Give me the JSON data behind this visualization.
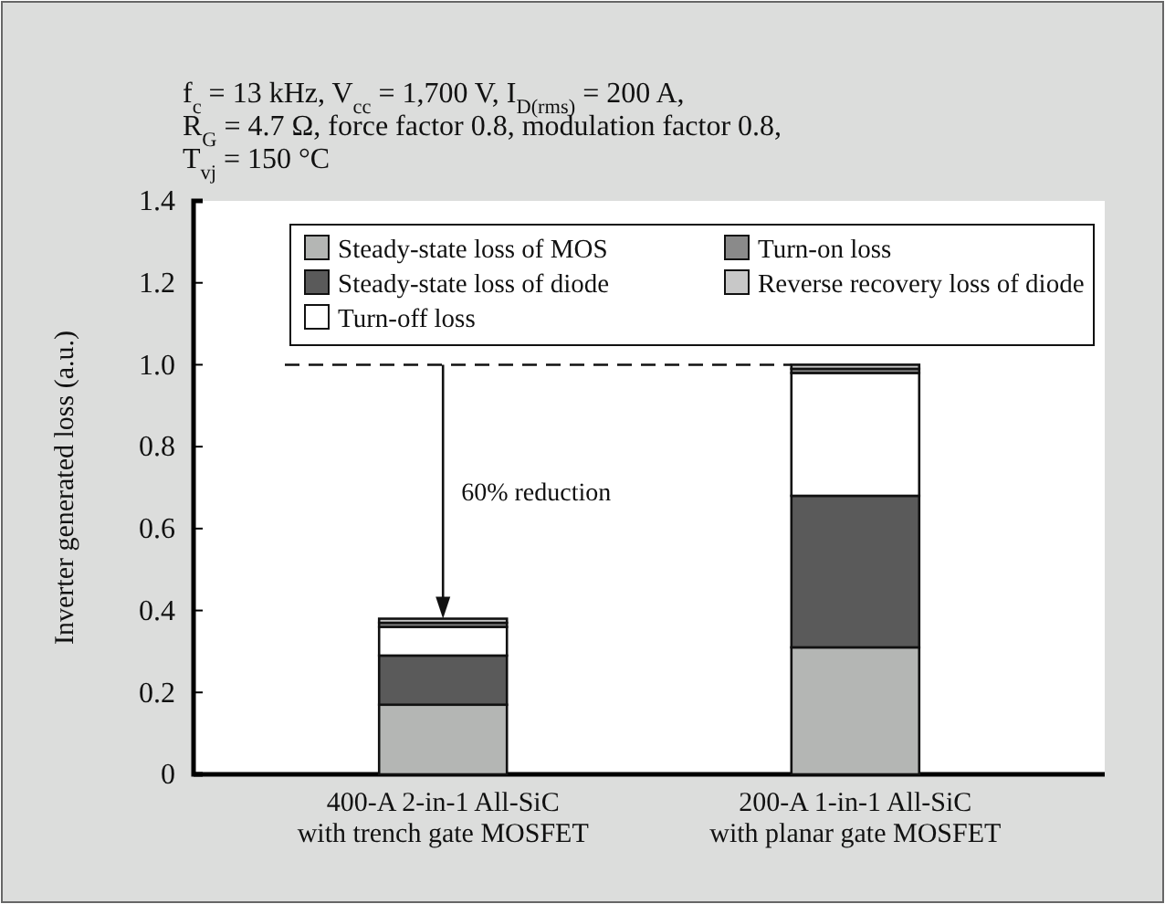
{
  "chart_data": {
    "type": "bar",
    "stacked": true,
    "title": "f$_{c}$ = 13 kHz, V$_{cc}$ = 1,700 V, I$_{D(rms)}$ = 200 A,\nR$_{G}$ = 4.7 Ω, force factor 0.8, modulation factor 0.8,\nT$_{vj}$ = 150 °C",
    "ylabel": "Inverter generated loss (a.u.)",
    "categories": [
      "400-A 2-in-1 All-SiC\nwith trench gate MOSFET",
      "200-A 1-in-1 All-SiC\nwith planar gate MOSFET"
    ],
    "series": [
      {
        "name": "Steady-state loss of MOS",
        "color": "#b4b6b4",
        "values": [
          0.17,
          0.31
        ]
      },
      {
        "name": "Steady-state loss of diode",
        "color": "#5a5a5a",
        "values": [
          0.12,
          0.37
        ]
      },
      {
        "name": "Turn-off loss",
        "color": "#ffffff",
        "values": [
          0.07,
          0.3
        ]
      },
      {
        "name": "Turn-on loss",
        "color": "#8a8a8a",
        "values": [
          0.01,
          0.01
        ]
      },
      {
        "name": "Reverse recovery loss of diode",
        "color": "#c8c8c8",
        "values": [
          0.01,
          0.01
        ]
      }
    ],
    "ylim": [
      0,
      1.4
    ],
    "yticks": [
      0,
      {
        "value": 0.2,
        "label": "0.2"
      },
      {
        "value": 0.4,
        "label": "0.4"
      },
      {
        "value": 0.6,
        "label": "0.6"
      },
      {
        "value": 0.8,
        "label": "0.8"
      },
      {
        "value": 1,
        "label": "1.0"
      },
      {
        "value": 1.2,
        "label": "1.2"
      },
      {
        "value": 1.4,
        "label": "1.4"
      }
    ],
    "ref_lines": [
      {
        "axis": "y",
        "value": 1,
        "line_style": "dashed"
      }
    ],
    "annotations": [
      "60% reduction"
    ],
    "legend": "top",
    "grid": false
  }
}
